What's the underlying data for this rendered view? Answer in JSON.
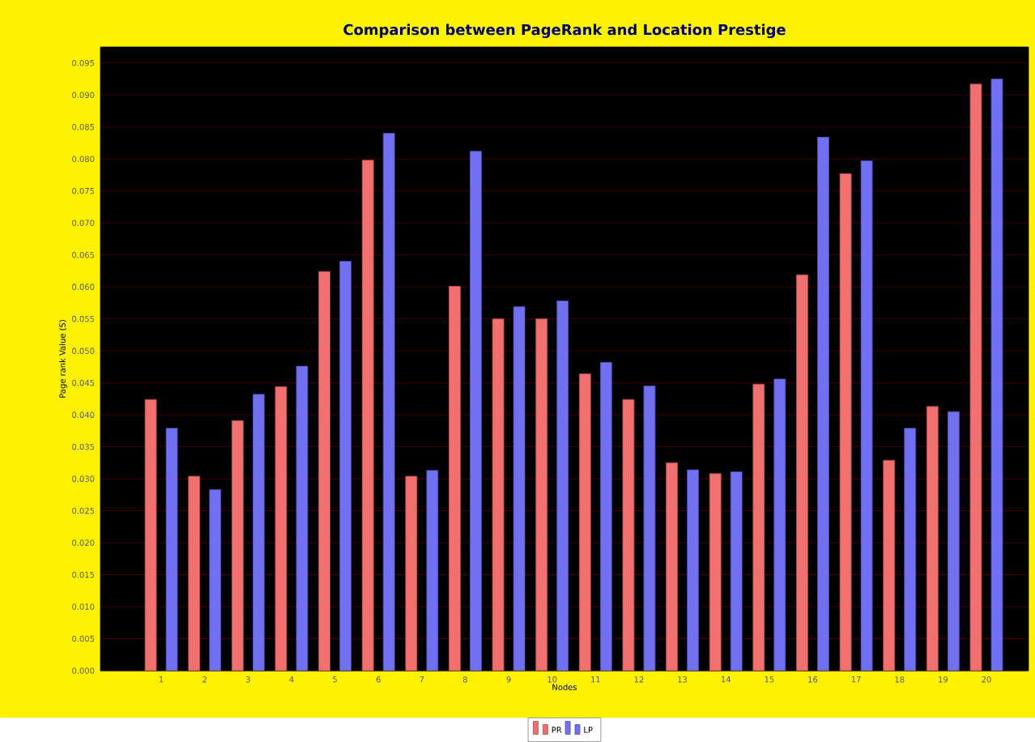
{
  "chart_data": {
    "type": "bar",
    "title": "Comparison between PageRank and Location Prestige",
    "xlabel": "Nodes",
    "ylabel": "Page rank Value (S)",
    "categories": [
      "1",
      "2",
      "3",
      "4",
      "5",
      "6",
      "7",
      "8",
      "9",
      "10",
      "11",
      "12",
      "13",
      "14",
      "15",
      "16",
      "17",
      "18",
      "19",
      "20"
    ],
    "series": [
      {
        "name": "PR",
        "color": "#f07070",
        "values": [
          0.0424,
          0.0304,
          0.0391,
          0.0444,
          0.0624,
          0.0798,
          0.0304,
          0.0601,
          0.055,
          0.055,
          0.0464,
          0.0424,
          0.0325,
          0.0308,
          0.0448,
          0.0619,
          0.0777,
          0.0329,
          0.0413,
          0.0917
        ]
      },
      {
        "name": "LP",
        "color": "#7070f0",
        "values": [
          0.0379,
          0.0283,
          0.0432,
          0.0476,
          0.064,
          0.084,
          0.0313,
          0.0812,
          0.0569,
          0.0578,
          0.0482,
          0.0445,
          0.0314,
          0.0311,
          0.0456,
          0.0834,
          0.0797,
          0.0379,
          0.0405,
          0.0925
        ]
      }
    ],
    "ylim": [
      0,
      0.0975
    ],
    "yticks": [
      {
        "value": 0,
        "label": "0.000"
      },
      {
        "value": 0.005,
        "label": "0.005"
      },
      {
        "value": 0.01,
        "label": "0.010"
      },
      {
        "value": 0.015,
        "label": "0.015"
      },
      {
        "value": 0.02,
        "label": "0.020"
      },
      {
        "value": 0.025,
        "label": "0.025"
      },
      {
        "value": 0.03,
        "label": "0.030"
      },
      {
        "value": 0.035,
        "label": "0.035"
      },
      {
        "value": 0.04,
        "label": "0.040"
      },
      {
        "value": 0.045,
        "label": "0.045"
      },
      {
        "value": 0.05,
        "label": "0.050"
      },
      {
        "value": 0.055,
        "label": "0.055"
      },
      {
        "value": 0.06,
        "label": "0.060"
      },
      {
        "value": 0.065,
        "label": "0.065"
      },
      {
        "value": 0.07,
        "label": "0.070"
      },
      {
        "value": 0.075,
        "label": "0.075"
      },
      {
        "value": 0.08,
        "label": "0.080"
      },
      {
        "value": 0.085,
        "label": "0.085"
      },
      {
        "value": 0.09,
        "label": "0.090"
      },
      {
        "value": 0.095,
        "label": "0.095"
      }
    ],
    "grid": "y",
    "legend": "bottom"
  }
}
